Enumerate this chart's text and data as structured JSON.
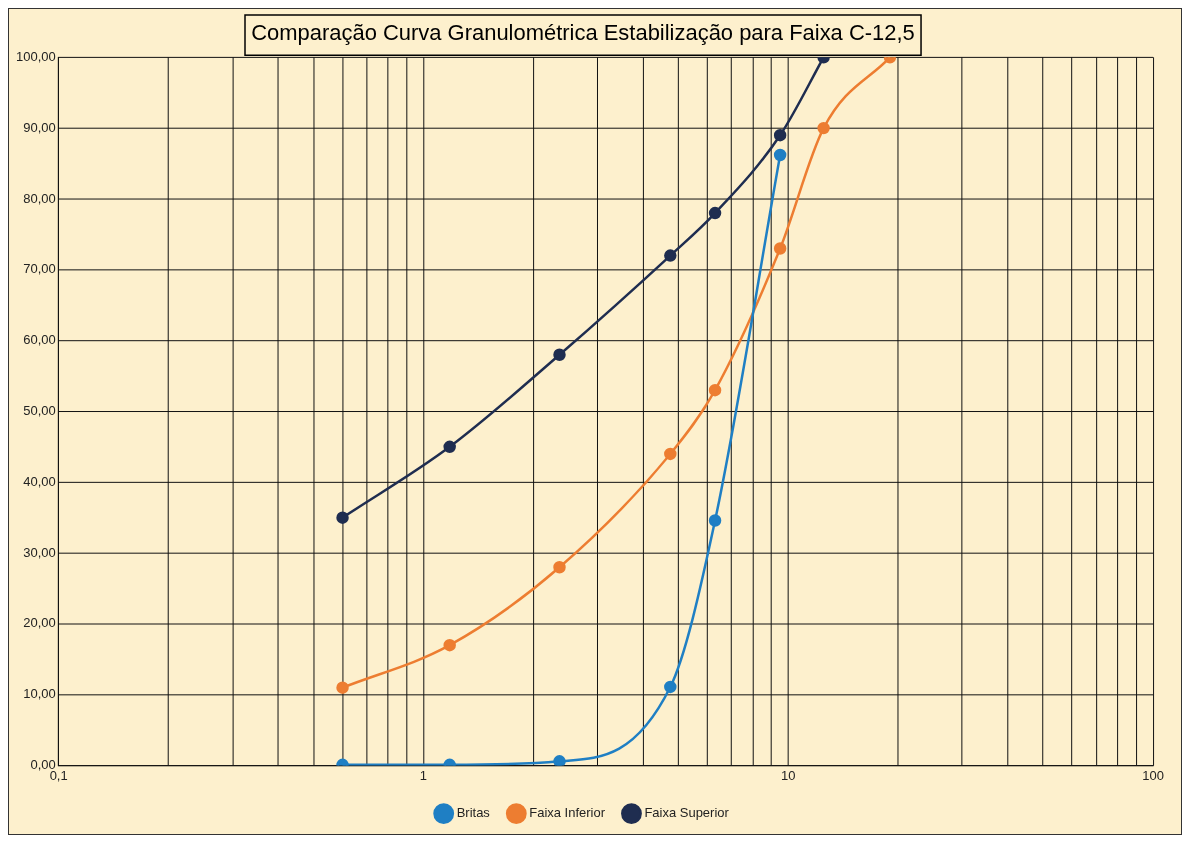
{
  "chart_data": {
    "type": "line",
    "title": "Comparação Curva Granulométrica Estabilização para Faixa C-12,5",
    "x": [
      0.6,
      1.18,
      2.36,
      4.75,
      6.3,
      9.5,
      12.5,
      19
    ],
    "series": [
      {
        "name": "Britas",
        "color": "#1f7fc4",
        "values": [
          0.1,
          0.1,
          0.6,
          11.1,
          34.6,
          86.2,
          null,
          null
        ]
      },
      {
        "name": "Faixa Inferior",
        "color": "#ed7d31",
        "values": [
          11,
          17,
          28,
          44,
          53,
          73,
          90,
          100
        ]
      },
      {
        "name": "Faixa Superior",
        "color": "#1f2d50",
        "values": [
          35,
          45,
          58,
          72,
          78,
          89,
          100,
          null
        ]
      }
    ],
    "log": "x",
    "xlim": [
      0.1,
      100
    ],
    "xticks": [
      {
        "value": 0.1,
        "label": "0,1"
      },
      {
        "value": 0.2,
        "label": null
      },
      {
        "value": 0.3,
        "label": null
      },
      {
        "value": 0.4,
        "label": null
      },
      {
        "value": 0.5,
        "label": null
      },
      {
        "value": 0.6,
        "label": null
      },
      {
        "value": 0.7,
        "label": null
      },
      {
        "value": 0.8,
        "label": null
      },
      {
        "value": 0.9,
        "label": null
      },
      1,
      {
        "value": 2,
        "label": null
      },
      {
        "value": 3,
        "label": null
      },
      {
        "value": 4,
        "label": null
      },
      {
        "value": 5,
        "label": null
      },
      {
        "value": 6,
        "label": null
      },
      {
        "value": 7,
        "label": null
      },
      {
        "value": 8,
        "label": null
      },
      {
        "value": 9,
        "label": null
      },
      10,
      {
        "value": 20,
        "label": null
      },
      {
        "value": 30,
        "label": null
      },
      {
        "value": 40,
        "label": null
      },
      {
        "value": 50,
        "label": null
      },
      {
        "value": 60,
        "label": null
      },
      {
        "value": 70,
        "label": null
      },
      {
        "value": 80,
        "label": null
      },
      {
        "value": 90,
        "label": null
      },
      100
    ],
    "ylim": [
      0,
      100
    ],
    "yticks": [
      {
        "value": 0,
        "label": "0,00"
      },
      {
        "value": 10,
        "label": "10,00"
      },
      {
        "value": 20,
        "label": "20,00"
      },
      {
        "value": 30,
        "label": "30,00"
      },
      {
        "value": 40,
        "label": "40,00"
      },
      {
        "value": 50,
        "label": "50,00"
      },
      {
        "value": 60,
        "label": "60,00"
      },
      {
        "value": 70,
        "label": "70,00"
      },
      {
        "value": 80,
        "label": "80,00"
      },
      {
        "value": 90,
        "label": "90,00"
      },
      {
        "value": 100,
        "label": "100,00"
      }
    ],
    "grid": true,
    "legend": "bottom",
    "marker": "circle"
  }
}
